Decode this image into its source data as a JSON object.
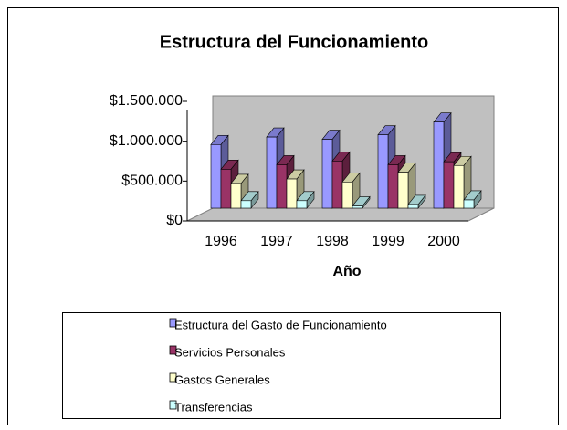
{
  "chart_data": {
    "type": "bar3d",
    "title": "Estructura del Funcionamiento",
    "x_label": "Año",
    "categories": [
      "1996",
      "1997",
      "1998",
      "1999",
      "2000"
    ],
    "series": [
      {
        "name": "Estructura del Gasto de Funcionamiento",
        "color": "#9999ff",
        "values": [
          850000,
          950000,
          920000,
          980000,
          1150000
        ]
      },
      {
        "name": "Servicios Personales",
        "color": "#993366",
        "values": [
          520000,
          580000,
          630000,
          580000,
          620000
        ]
      },
      {
        "name": "Gastos Generales",
        "color": "#ffffcc",
        "values": [
          330000,
          390000,
          350000,
          480000,
          570000
        ]
      },
      {
        "name": "Transferencias",
        "color": "#ccffff",
        "values": [
          100000,
          100000,
          30000,
          50000,
          110000
        ]
      }
    ],
    "ylim": [
      0,
      1500000
    ],
    "yticks": [
      {
        "value": 0,
        "label": "$0"
      },
      {
        "value": 500000,
        "label": "$500.000"
      },
      {
        "value": 1000000,
        "label": "$1.000.000"
      },
      {
        "value": 1500000,
        "label": "$1.500.000"
      }
    ],
    "legend": "bottom"
  }
}
